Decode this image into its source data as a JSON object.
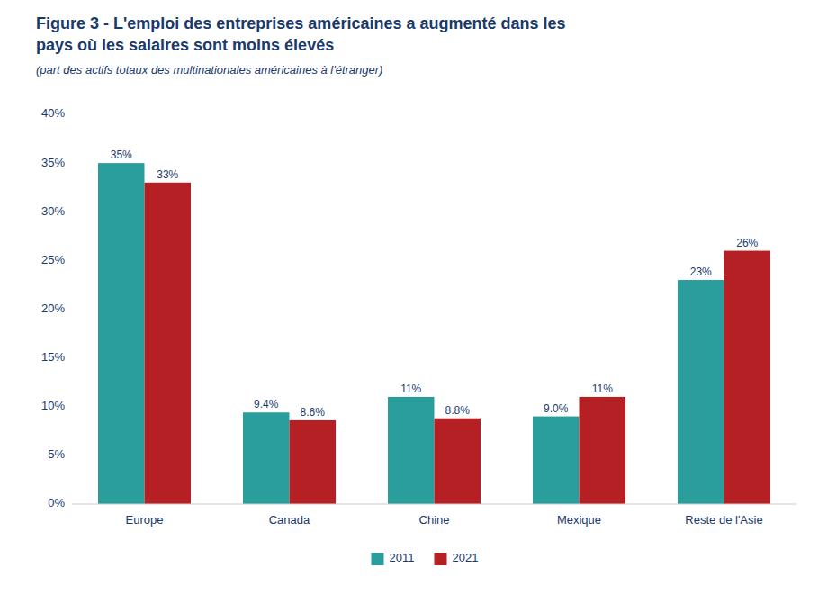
{
  "chart_data": {
    "type": "bar",
    "title": [
      "Figure 3 - L'emploi des entreprises américaines a augmenté dans les",
      "pays où les salaires sont moins élevés"
    ],
    "subtitle": "(part des actifs totaux des multinationales américaines à l'étranger)",
    "categories": [
      "Europe",
      "Canada",
      "Chine",
      "Mexique",
      "Reste de l'Asie"
    ],
    "series": [
      {
        "name": "2011",
        "color": "#2a9d9d",
        "values": [
          35,
          9.4,
          11,
          9.0,
          23
        ],
        "value_labels": [
          "35%",
          "9.4%",
          "11%",
          "9.0%",
          "23%"
        ]
      },
      {
        "name": "2021",
        "color": "#b52025",
        "values": [
          33,
          8.6,
          8.8,
          11,
          26
        ],
        "value_labels": [
          "33%",
          "8.6%",
          "8.8%",
          "11%",
          "26%"
        ]
      }
    ],
    "ylim": [
      0,
      40
    ],
    "yticks": [
      {
        "value": 0,
        "label": "0%"
      },
      {
        "value": 5,
        "label": "5%"
      },
      {
        "value": 10,
        "label": "10%"
      },
      {
        "value": 15,
        "label": "15%"
      },
      {
        "value": 20,
        "label": "20%"
      },
      {
        "value": 25,
        "label": "25%"
      },
      {
        "value": 30,
        "label": "30%"
      },
      {
        "value": 35,
        "label": "35%"
      },
      {
        "value": 40,
        "label": "40%"
      }
    ],
    "grid": false,
    "legend": "bottom",
    "data_labels": true
  }
}
